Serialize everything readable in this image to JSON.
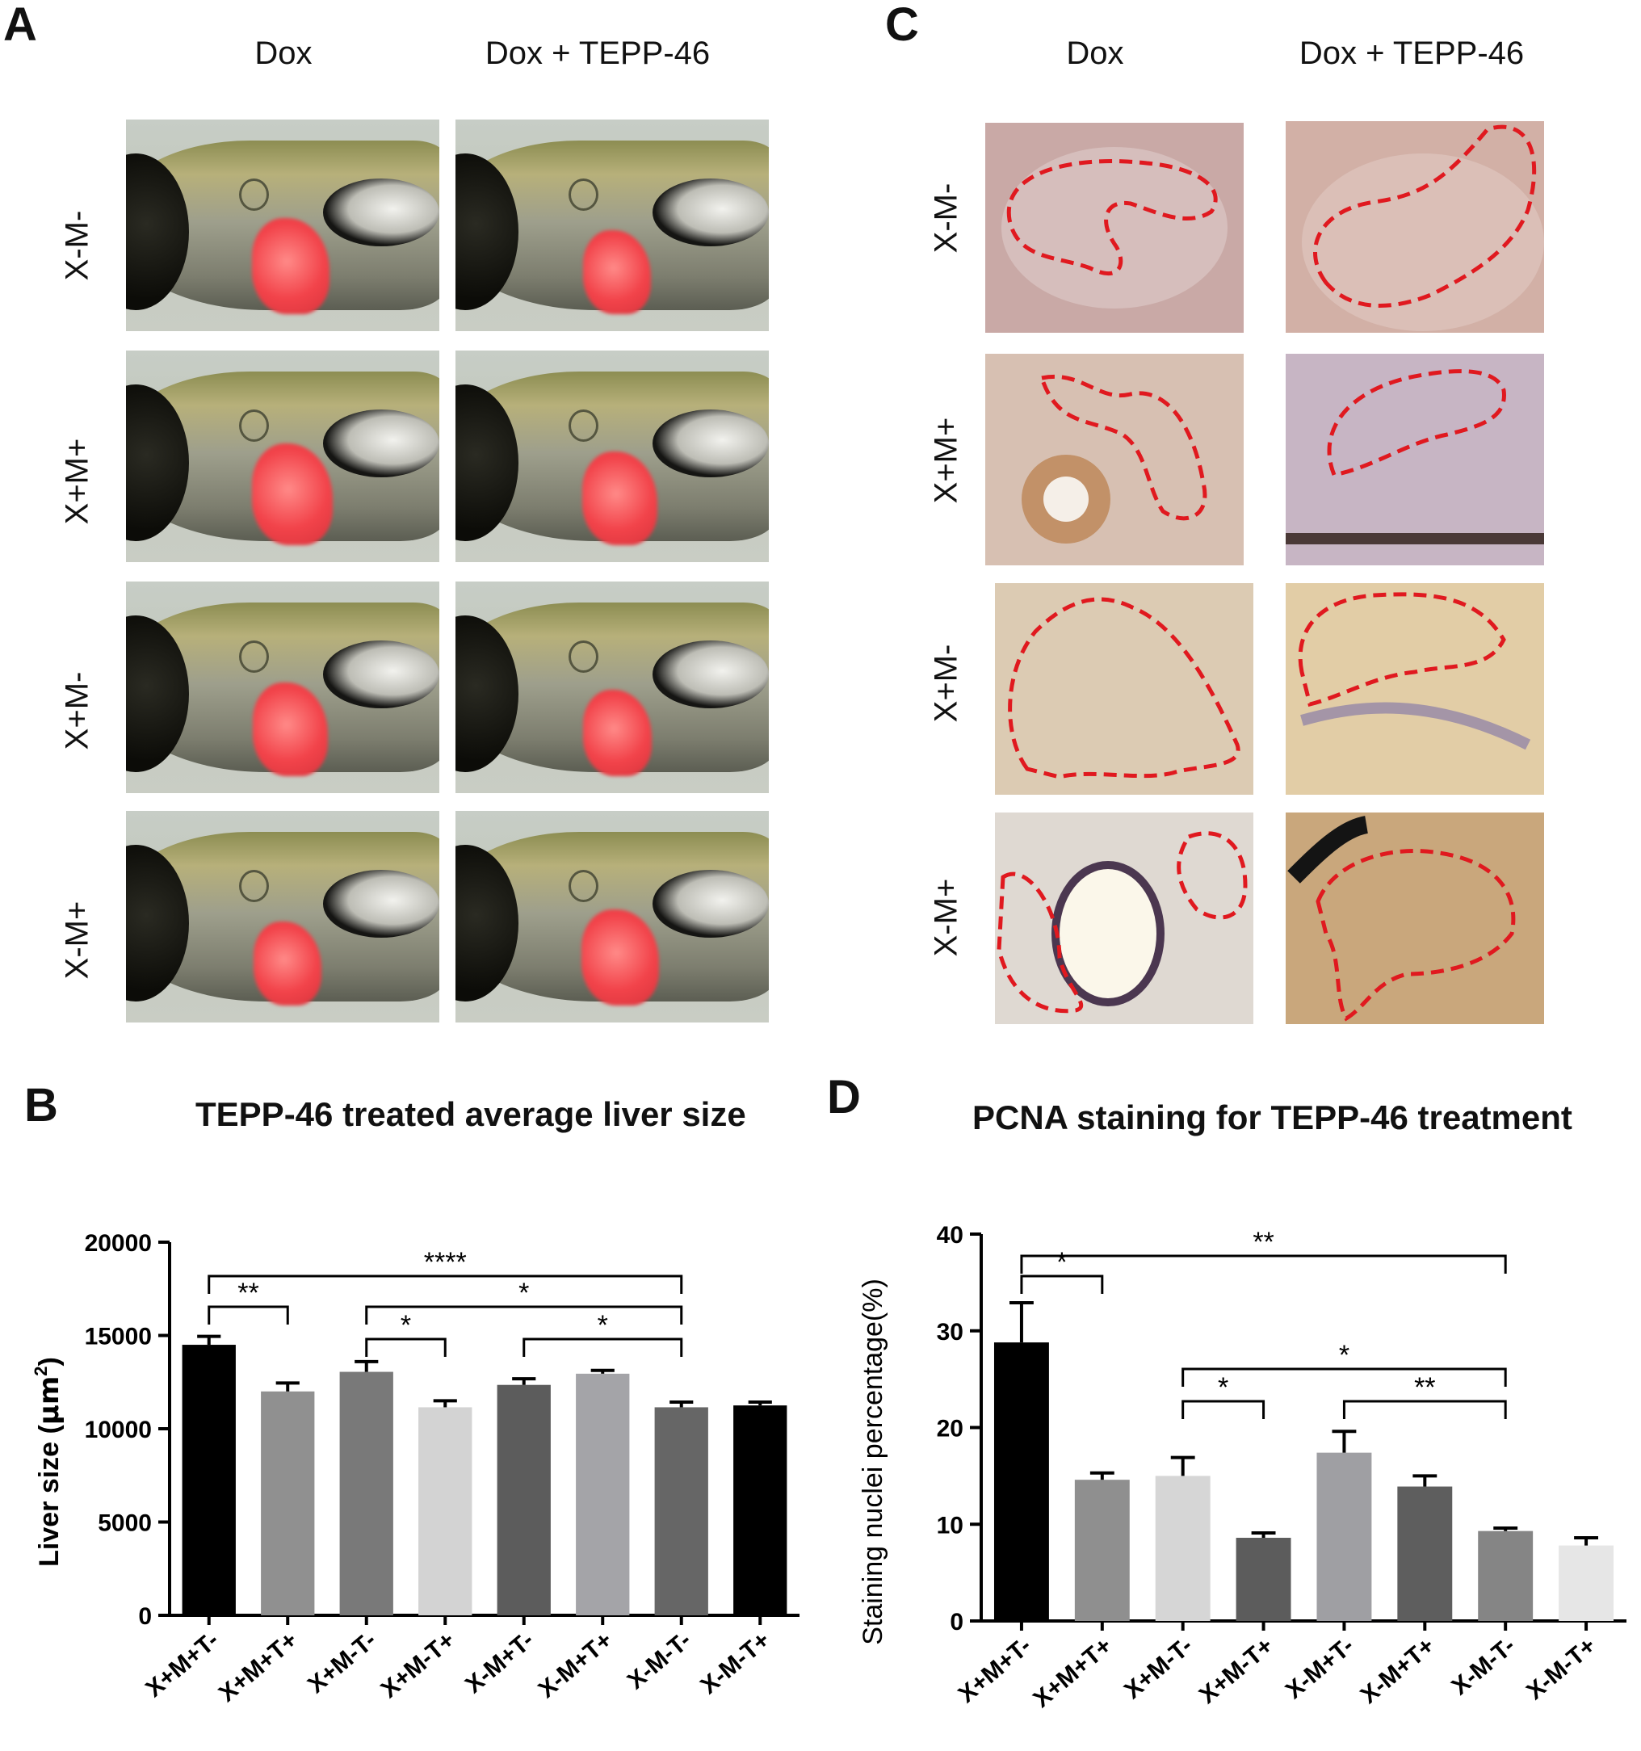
{
  "panel_a": {
    "letter": "A",
    "columns": [
      "Dox",
      "Dox + TEPP-46"
    ],
    "rows": [
      "X-M-",
      "X+M+",
      "X+M-",
      "X-M+"
    ],
    "liver_levels": [
      [
        0.85,
        0.55
      ],
      [
        1.0,
        0.8
      ],
      [
        0.8,
        0.6
      ],
      [
        0.55,
        0.85
      ]
    ]
  },
  "panel_c": {
    "letter": "C",
    "columns": [
      "Dox",
      "Dox + TEPP-46"
    ],
    "rows": [
      "X-M-",
      "X+M+",
      "X+M-",
      "X-M+"
    ],
    "tints": [
      [
        "#c9a9a6",
        "#d2b0a6"
      ],
      [
        "#d7c0b2",
        "#c7b5c4"
      ],
      [
        "#dccbb3",
        "#e2cda6"
      ],
      [
        "#dfd9d2",
        "#c9a77c"
      ]
    ],
    "outline_color": "#e0191f"
  },
  "panel_b": {
    "letter": "B",
    "colors": [
      "#000000",
      "#909090",
      "#797979",
      "#d3d3d3",
      "#5c5c5c",
      "#a4a4a8",
      "#666666",
      "#000000"
    ]
  },
  "panel_d": {
    "letter": "D",
    "colors": [
      "#000000",
      "#8f8f8f",
      "#d6d6d6",
      "#5c5c5c",
      "#9f9fa3",
      "#5e5e5e",
      "#858585",
      "#e6e6e6"
    ]
  },
  "chart_data": [
    {
      "type": "bar",
      "title": "TEPP-46 treated average liver size",
      "ylabel": "Liver size (μm²)",
      "ylabel_main": "Liver size (",
      "ylabel_mu": "μm",
      "ylabel_sup": "2",
      "ylabel_close": ")",
      "categories": [
        "X+M+T-",
        "X+M+T+",
        "X+M-T-",
        "X+M-T+",
        "X-M+T-",
        "X-M+T+",
        "X-M-T-",
        "X-M-T+"
      ],
      "values": [
        14500,
        12000,
        13050,
        11150,
        12350,
        12950,
        11150,
        11250
      ],
      "errors": [
        450,
        450,
        550,
        350,
        330,
        180,
        280,
        180
      ],
      "ylim": [
        0,
        20000
      ],
      "yticks": [
        0,
        5000,
        10000,
        15000,
        20000
      ],
      "brackets": [
        {
          "from": 0,
          "to": 1,
          "label": "**"
        },
        {
          "from": 0,
          "to": 6,
          "label": "****"
        },
        {
          "from": 2,
          "to": 6,
          "label": "*"
        },
        {
          "from": 2,
          "to": 3,
          "label": "*"
        },
        {
          "from": 4,
          "to": 6,
          "label": "*"
        }
      ]
    },
    {
      "type": "bar",
      "title": "PCNA staining for TEPP-46 treatment",
      "ylabel": "Staining nuclei percentage(%)",
      "categories": [
        "X+M+T-",
        "X+M+T+",
        "X+M-T-",
        "X+M-T+",
        "X-M+T-",
        "X-M+T+",
        "X-M-T-",
        "X-M-T+"
      ],
      "values": [
        28.8,
        14.6,
        15.0,
        8.6,
        17.4,
        13.9,
        9.3,
        7.8
      ],
      "errors": [
        4.1,
        0.7,
        1.9,
        0.5,
        2.2,
        1.1,
        0.3,
        0.8
      ],
      "ylim": [
        0,
        40
      ],
      "yticks": [
        0,
        10,
        20,
        30,
        40
      ],
      "brackets": [
        {
          "from": 0,
          "to": 1,
          "label": "*"
        },
        {
          "from": 0,
          "to": 6,
          "label": "**"
        },
        {
          "from": 2,
          "to": 6,
          "label": "*"
        },
        {
          "from": 2,
          "to": 3,
          "label": "*"
        },
        {
          "from": 4,
          "to": 6,
          "label": "**"
        }
      ]
    }
  ]
}
